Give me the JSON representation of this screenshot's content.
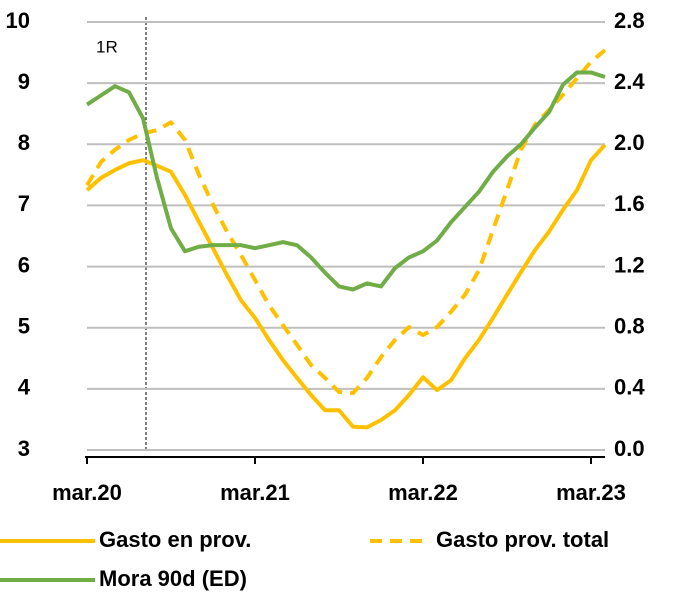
{
  "chart_data": {
    "type": "line",
    "annotation": "1R",
    "categories": [
      "mar.20",
      null,
      null,
      null,
      null,
      null,
      null,
      null,
      null,
      null,
      null,
      null,
      "mar.21",
      null,
      null,
      null,
      null,
      null,
      null,
      null,
      null,
      null,
      null,
      null,
      "mar.22",
      null,
      null,
      null,
      null,
      null,
      null,
      null,
      null,
      null,
      null,
      null,
      "mar.23",
      null
    ],
    "series": [
      {
        "name": "Gasto en prov.",
        "color": "#FFC000",
        "dashed": false,
        "axis": "y",
        "values": [
          7.25,
          7.45,
          7.58,
          7.69,
          7.74,
          7.65,
          7.55,
          7.17,
          6.73,
          6.3,
          5.86,
          5.45,
          5.16,
          4.8,
          4.47,
          4.18,
          3.9,
          3.65,
          3.65,
          3.38,
          3.37,
          3.49,
          3.65,
          3.9,
          4.19,
          3.98,
          4.14,
          4.5,
          4.8,
          5.16,
          5.54,
          5.91,
          6.27,
          6.57,
          6.93,
          7.25,
          7.74,
          7.99
        ]
      },
      {
        "name": "Gasto prov. total",
        "color": "#FFC000",
        "dashed": true,
        "axis": "y",
        "values": [
          7.33,
          7.71,
          7.91,
          8.07,
          8.18,
          8.23,
          8.36,
          8.07,
          7.5,
          7.01,
          6.57,
          6.19,
          5.78,
          5.37,
          5.04,
          4.72,
          4.39,
          4.18,
          3.95,
          3.93,
          4.18,
          4.52,
          4.8,
          5.01,
          4.88,
          5.01,
          5.26,
          5.54,
          5.94,
          6.6,
          7.25,
          7.91,
          8.32,
          8.56,
          8.81,
          9.08,
          9.35,
          9.54
        ]
      },
      {
        "name": "Mora 90d (ED)",
        "color": "#70AD47",
        "dashed": false,
        "axis": "y2",
        "values": [
          2.26,
          2.32,
          2.38,
          2.34,
          2.17,
          1.78,
          1.45,
          1.3,
          1.33,
          1.34,
          1.34,
          1.34,
          1.32,
          1.34,
          1.36,
          1.34,
          1.26,
          1.16,
          1.07,
          1.05,
          1.09,
          1.07,
          1.19,
          1.26,
          1.3,
          1.37,
          1.49,
          1.59,
          1.69,
          1.82,
          1.92,
          2.0,
          2.11,
          2.21,
          2.39,
          2.47,
          2.47,
          2.44
        ]
      }
    ],
    "ylim": [
      3,
      10
    ],
    "yticks": [
      3,
      4,
      5,
      6,
      7,
      8,
      9,
      10
    ],
    "y2lim": [
      0,
      2.8
    ],
    "y2ticks": [
      {
        "value": 0,
        "label": "0.0"
      },
      0.4,
      0.8,
      1.2,
      1.6,
      {
        "value": 2,
        "label": "2.0"
      },
      2.4,
      2.8
    ],
    "grid": true
  }
}
